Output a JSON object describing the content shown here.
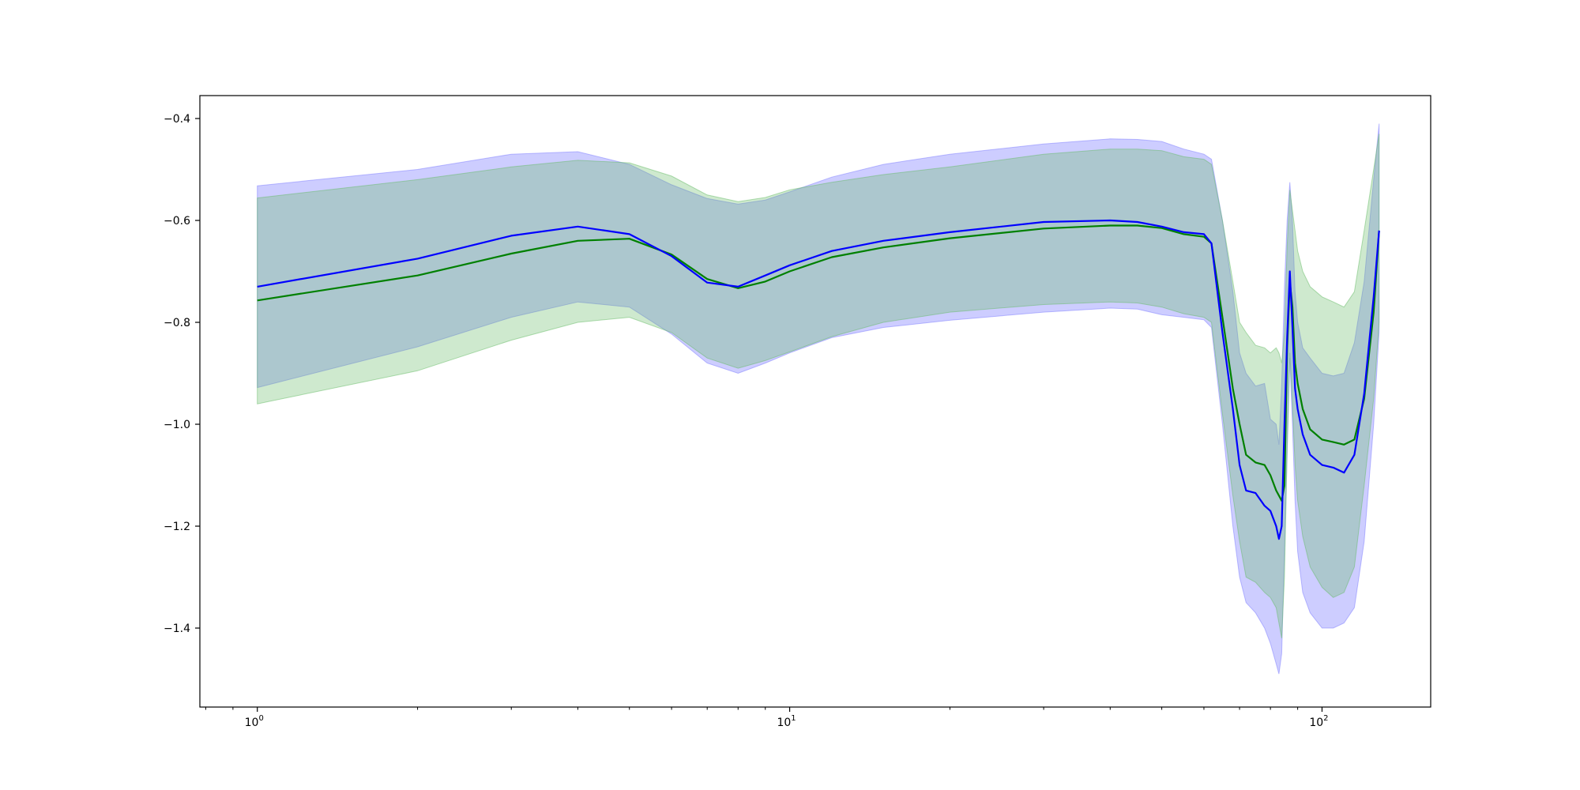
{
  "chart_data": {
    "type": "line",
    "title": "",
    "xlabel": "",
    "ylabel": "",
    "xscale": "log",
    "xlim": [
      0.78,
      160
    ],
    "ylim": [
      -1.555,
      -0.355
    ],
    "grid": false,
    "legend": "none",
    "x_ticks": [
      {
        "value": 1,
        "base": "10",
        "exp": "0"
      },
      {
        "value": 10,
        "base": "10",
        "exp": "1"
      },
      {
        "value": 100,
        "base": "10",
        "exp": "2"
      }
    ],
    "y_ticks": [
      {
        "value": -0.4,
        "label": "−0.4"
      },
      {
        "value": -0.6,
        "label": "−0.6"
      },
      {
        "value": -0.8,
        "label": "−0.8"
      },
      {
        "value": -1.0,
        "label": "−1.0"
      },
      {
        "value": -1.2,
        "label": "−1.2"
      },
      {
        "value": -1.4,
        "label": "−1.4"
      }
    ],
    "x": [
      1,
      2,
      3,
      4,
      5,
      6,
      7,
      8,
      9,
      10,
      12,
      15,
      20,
      30,
      40,
      45,
      50,
      55,
      60,
      62,
      65,
      68,
      70,
      72,
      75,
      78,
      80,
      82,
      83,
      84,
      85,
      86,
      87,
      88,
      89,
      90,
      92,
      95,
      100,
      105,
      110,
      115,
      120,
      125,
      128
    ],
    "series": [
      {
        "color": "#0000ff",
        "band_color": "#7b7bff",
        "band_opacity": 0.38,
        "mean": [
          -0.73,
          -0.675,
          -0.63,
          -0.612,
          -0.627,
          -0.67,
          -0.722,
          -0.73,
          -0.708,
          -0.688,
          -0.66,
          -0.64,
          -0.623,
          -0.603,
          -0.6,
          -0.603,
          -0.612,
          -0.623,
          -0.627,
          -0.645,
          -0.82,
          -0.97,
          -1.08,
          -1.13,
          -1.135,
          -1.16,
          -1.17,
          -1.2,
          -1.225,
          -1.2,
          -1.0,
          -0.83,
          -0.7,
          -0.81,
          -0.93,
          -0.97,
          -1.02,
          -1.06,
          -1.08,
          -1.085,
          -1.095,
          -1.06,
          -0.94,
          -0.75,
          -0.62
        ],
        "upper": [
          -0.532,
          -0.5,
          -0.47,
          -0.465,
          -0.49,
          -0.53,
          -0.557,
          -0.568,
          -0.56,
          -0.544,
          -0.515,
          -0.49,
          -0.47,
          -0.45,
          -0.44,
          -0.441,
          -0.445,
          -0.46,
          -0.47,
          -0.48,
          -0.6,
          -0.74,
          -0.86,
          -0.9,
          -0.925,
          -0.92,
          -0.99,
          -1.0,
          -1.04,
          -0.92,
          -0.73,
          -0.6,
          -0.525,
          -0.6,
          -0.74,
          -0.8,
          -0.85,
          -0.87,
          -0.9,
          -0.905,
          -0.9,
          -0.84,
          -0.72,
          -0.52,
          -0.41
        ],
        "lower": [
          -0.928,
          -0.848,
          -0.79,
          -0.76,
          -0.77,
          -0.823,
          -0.88,
          -0.9,
          -0.88,
          -0.86,
          -0.83,
          -0.81,
          -0.796,
          -0.78,
          -0.772,
          -0.774,
          -0.785,
          -0.79,
          -0.795,
          -0.81,
          -1.0,
          -1.2,
          -1.3,
          -1.35,
          -1.37,
          -1.4,
          -1.43,
          -1.47,
          -1.49,
          -1.45,
          -1.25,
          -1.06,
          -0.87,
          -1.0,
          -1.15,
          -1.25,
          -1.33,
          -1.37,
          -1.4,
          -1.4,
          -1.39,
          -1.36,
          -1.23,
          -1.0,
          -0.82
        ]
      },
      {
        "color": "#008000",
        "band_color": "#66bb66",
        "band_opacity": 0.32,
        "mean": [
          -0.757,
          -0.708,
          -0.665,
          -0.64,
          -0.636,
          -0.667,
          -0.715,
          -0.733,
          -0.72,
          -0.7,
          -0.672,
          -0.653,
          -0.635,
          -0.616,
          -0.61,
          -0.61,
          -0.615,
          -0.627,
          -0.632,
          -0.645,
          -0.79,
          -0.93,
          -1.0,
          -1.06,
          -1.075,
          -1.08,
          -1.1,
          -1.13,
          -1.14,
          -1.15,
          -1.12,
          -0.85,
          -0.72,
          -0.77,
          -0.88,
          -0.92,
          -0.97,
          -1.01,
          -1.03,
          -1.035,
          -1.04,
          -1.03,
          -0.95,
          -0.78,
          -0.62
        ],
        "upper": [
          -0.556,
          -0.52,
          -0.495,
          -0.482,
          -0.487,
          -0.513,
          -0.55,
          -0.563,
          -0.555,
          -0.54,
          -0.525,
          -0.51,
          -0.495,
          -0.47,
          -0.46,
          -0.46,
          -0.463,
          -0.475,
          -0.48,
          -0.49,
          -0.6,
          -0.72,
          -0.8,
          -0.82,
          -0.845,
          -0.85,
          -0.86,
          -0.85,
          -0.86,
          -0.88,
          -0.82,
          -0.65,
          -0.54,
          -0.58,
          -0.62,
          -0.66,
          -0.7,
          -0.73,
          -0.75,
          -0.76,
          -0.77,
          -0.74,
          -0.62,
          -0.5,
          -0.43
        ],
        "lower": [
          -0.96,
          -0.895,
          -0.835,
          -0.8,
          -0.79,
          -0.82,
          -0.87,
          -0.89,
          -0.875,
          -0.858,
          -0.828,
          -0.8,
          -0.78,
          -0.765,
          -0.76,
          -0.762,
          -0.77,
          -0.783,
          -0.79,
          -0.8,
          -0.98,
          -1.14,
          -1.23,
          -1.3,
          -1.31,
          -1.33,
          -1.34,
          -1.36,
          -1.39,
          -1.42,
          -1.3,
          -1.05,
          -0.86,
          -0.96,
          -1.08,
          -1.15,
          -1.22,
          -1.28,
          -1.32,
          -1.34,
          -1.33,
          -1.28,
          -1.12,
          -0.95,
          -0.8
        ]
      }
    ]
  }
}
